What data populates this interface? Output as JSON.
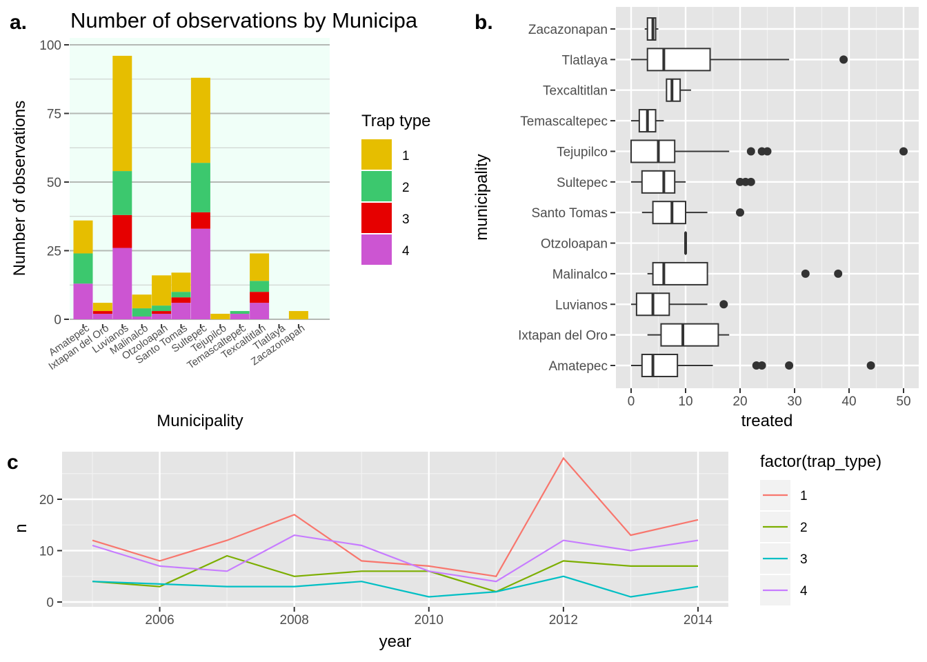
{
  "colors": {
    "trap_a": [
      "#E6BE00",
      "#3CC86E",
      "#E60000",
      "#CC55D2"
    ],
    "trap_c": [
      "#F8766D",
      "#7CAE00",
      "#00BFC4",
      "#C77CFF"
    ],
    "panel_a_bg": "#F0FFF8",
    "ggplot_bg": "#E5E5E5"
  },
  "chart_data": [
    {
      "type": "bar",
      "panel_label": "a.",
      "title": "Number of observations by Municipa",
      "xlabel": "Municipality",
      "ylabel": "Number of observations",
      "ylim": [
        0,
        100
      ],
      "yticks": [
        "0",
        "25",
        "50",
        "75",
        "100"
      ],
      "categories": [
        "Amatepec",
        "Ixtapan del Oro",
        "Luvianos",
        "Malinalco",
        "Otzoloapan",
        "Santo Tomas",
        "Sultepec",
        "Tejupilco",
        "Temascaltepec",
        "Texcaltitlan",
        "Tlatlaya",
        "Zacazonapan"
      ],
      "legend_title": "Trap type",
      "legend_position": "right",
      "series": [
        {
          "name": "1",
          "values": [
            12,
            3,
            42,
            5,
            11,
            7,
            31,
            2,
            0,
            10,
            0,
            3
          ]
        },
        {
          "name": "2",
          "values": [
            11,
            0,
            16,
            3,
            2,
            2,
            18,
            0,
            1,
            4,
            0,
            0
          ]
        },
        {
          "name": "3",
          "values": [
            0,
            1,
            12,
            0,
            1,
            2,
            6,
            0,
            0,
            4,
            0,
            0
          ]
        },
        {
          "name": "4",
          "values": [
            13,
            2,
            26,
            1,
            2,
            6,
            33,
            0,
            2,
            6,
            0,
            0
          ]
        }
      ]
    },
    {
      "type": "boxplot",
      "panel_label": "b.",
      "xlabel": "treated",
      "ylabel": "municipality",
      "xlim": [
        0,
        50
      ],
      "xticks": [
        "0",
        "10",
        "20",
        "30",
        "40",
        "50"
      ],
      "categories": [
        "Amatepec",
        "Ixtapan del Oro",
        "Luvianos",
        "Malinalco",
        "Otzoloapan",
        "Santo Tomas",
        "Sultepec",
        "Tejupilco",
        "Temascaltepec",
        "Texcaltitlan",
        "Tlatlaya",
        "Zacazonapan"
      ],
      "boxes": [
        {
          "min": 0,
          "q1": 2,
          "median": 4,
          "q3": 8.5,
          "max": 15,
          "outliers": [
            23,
            24,
            29,
            44
          ]
        },
        {
          "min": 3,
          "q1": 5.5,
          "median": 9.5,
          "q3": 16,
          "max": 18,
          "outliers": []
        },
        {
          "min": 0,
          "q1": 1,
          "median": 4,
          "q3": 7,
          "max": 14,
          "outliers": [
            17
          ]
        },
        {
          "min": 3,
          "q1": 4,
          "median": 6,
          "q3": 14,
          "max": 14,
          "outliers": [
            32,
            38
          ]
        },
        {
          "min": 10,
          "q1": 10,
          "median": 10,
          "q3": 10,
          "max": 10,
          "outliers": []
        },
        {
          "min": 2,
          "q1": 4,
          "median": 7.5,
          "q3": 10,
          "max": 14,
          "outliers": [
            20
          ]
        },
        {
          "min": 0,
          "q1": 2,
          "median": 6,
          "q3": 8,
          "max": 10,
          "outliers": [
            20,
            21,
            22
          ]
        },
        {
          "min": 0,
          "q1": 0,
          "median": 5,
          "q3": 8,
          "max": 18,
          "outliers": [
            22,
            24,
            25,
            50
          ]
        },
        {
          "min": 0,
          "q1": 1.5,
          "median": 3,
          "q3": 4.5,
          "max": 6,
          "outliers": []
        },
        {
          "min": 6.5,
          "q1": 6.5,
          "median": 7.5,
          "q3": 9,
          "max": 11,
          "outliers": []
        },
        {
          "min": 0,
          "q1": 3,
          "median": 6,
          "q3": 14.5,
          "max": 29,
          "outliers": [
            39
          ]
        },
        {
          "min": 2.5,
          "q1": 3,
          "median": 4,
          "q3": 4.5,
          "max": 5,
          "outliers": []
        }
      ]
    },
    {
      "type": "line",
      "panel_label": "c",
      "xlabel": "year",
      "ylabel": "n",
      "xlim": [
        2004.6,
        2015.4
      ],
      "ylim": [
        -0.4,
        29.5
      ],
      "xticks": [
        "2006",
        "2008",
        "2010",
        "2012",
        "2014"
      ],
      "yticks": [
        "0",
        "10",
        "20"
      ],
      "legend_title": "factor(trap_type)",
      "legend_position": "right",
      "x": [
        2005,
        2006,
        2007,
        2008,
        2009,
        2010,
        2011,
        2012,
        2013,
        2014
      ],
      "series": [
        {
          "name": "1",
          "values": [
            12,
            8,
            12,
            17,
            8,
            7,
            5,
            28,
            13,
            16
          ]
        },
        {
          "name": "2",
          "values": [
            4,
            3,
            9,
            5,
            6,
            6,
            2,
            8,
            7,
            7
          ]
        },
        {
          "name": "3",
          "values": [
            4,
            3.5,
            3,
            3,
            4,
            1,
            2,
            5,
            1,
            3
          ]
        },
        {
          "name": "4",
          "values": [
            11,
            7,
            6,
            13,
            11,
            6,
            4,
            12,
            10,
            12
          ]
        }
      ]
    }
  ]
}
